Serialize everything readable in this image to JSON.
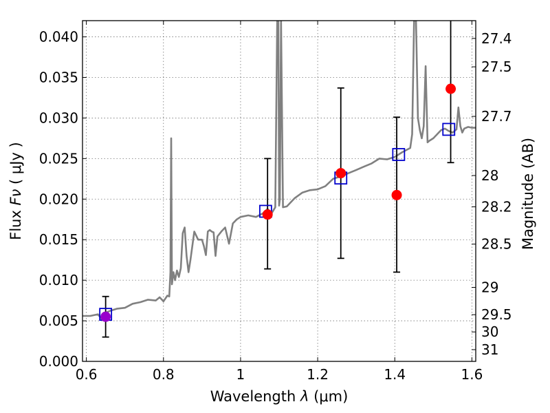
{
  "chart_data": {
    "type": "scatter",
    "title": "",
    "xlabel_prefix": "Wavelength ",
    "xlabel_symbol": "λ",
    "xlabel_unit": " (μm)",
    "ylabel_prefix": "Flux ",
    "ylabel_symbol": "Fν",
    "ylabel_unit": " ( μJy )",
    "y2label": "Magnitude (AB)",
    "xlim": [
      0.59,
      1.61
    ],
    "ylim": [
      0.0,
      0.042
    ],
    "grid": true,
    "x_ticks": [
      {
        "value": 0.6,
        "label": "0.6"
      },
      {
        "value": 0.8,
        "label": "0.8"
      },
      {
        "value": 1.0,
        "label": "1"
      },
      {
        "value": 1.2,
        "label": "1.2"
      },
      {
        "value": 1.4,
        "label": "1.4"
      },
      {
        "value": 1.6,
        "label": "1.6"
      }
    ],
    "y_ticks": [
      {
        "value": 0.0,
        "label": "0.000"
      },
      {
        "value": 0.005,
        "label": "0.005"
      },
      {
        "value": 0.01,
        "label": "0.010"
      },
      {
        "value": 0.015,
        "label": "0.015"
      },
      {
        "value": 0.02,
        "label": "0.020"
      },
      {
        "value": 0.025,
        "label": "0.025"
      },
      {
        "value": 0.03,
        "label": "0.030"
      },
      {
        "value": 0.035,
        "label": "0.035"
      },
      {
        "value": 0.04,
        "label": "0.040"
      }
    ],
    "y2_ticks": [
      {
        "mag": 27.4,
        "label": "27.4"
      },
      {
        "mag": 27.5,
        "label": "27.5"
      },
      {
        "mag": 27.7,
        "label": "27.7"
      },
      {
        "mag": 28.0,
        "label": "28"
      },
      {
        "mag": 28.2,
        "label": "28.2"
      },
      {
        "mag": 28.5,
        "label": "28.5"
      },
      {
        "mag": 29.0,
        "label": "29"
      },
      {
        "mag": 29.5,
        "label": "29.5"
      },
      {
        "mag": 30.0,
        "label": "30"
      },
      {
        "mag": 31.0,
        "label": "31"
      }
    ],
    "model_spectrum": {
      "color": "#808080",
      "x": [
        0.59,
        0.61,
        0.63,
        0.64,
        0.645,
        0.65,
        0.66,
        0.68,
        0.7,
        0.72,
        0.74,
        0.76,
        0.78,
        0.79,
        0.8,
        0.81,
        0.815,
        0.818,
        0.82,
        0.822,
        0.826,
        0.83,
        0.835,
        0.84,
        0.845,
        0.85,
        0.855,
        0.86,
        0.865,
        0.87,
        0.88,
        0.89,
        0.9,
        0.905,
        0.91,
        0.915,
        0.92,
        0.925,
        0.93,
        0.935,
        0.94,
        0.95,
        0.96,
        0.97,
        0.98,
        0.99,
        1.0,
        1.02,
        1.04,
        1.06,
        1.07,
        1.08,
        1.09,
        1.095,
        1.098,
        1.1,
        1.102,
        1.105,
        1.11,
        1.12,
        1.14,
        1.16,
        1.18,
        1.2,
        1.22,
        1.24,
        1.26,
        1.28,
        1.3,
        1.32,
        1.34,
        1.36,
        1.38,
        1.4,
        1.42,
        1.44,
        1.445,
        1.45,
        1.455,
        1.46,
        1.465,
        1.47,
        1.475,
        1.48,
        1.485,
        1.49,
        1.5,
        1.51,
        1.52,
        1.53,
        1.54,
        1.55,
        1.56,
        1.565,
        1.57,
        1.575,
        1.58,
        1.59,
        1.6,
        1.61
      ],
      "y": [
        0.0056,
        0.0056,
        0.0058,
        0.0052,
        0.0059,
        0.006,
        0.0062,
        0.0065,
        0.0066,
        0.0071,
        0.0073,
        0.0076,
        0.0075,
        0.0079,
        0.0074,
        0.0081,
        0.008,
        0.011,
        0.0275,
        0.0095,
        0.011,
        0.01,
        0.0112,
        0.0104,
        0.0115,
        0.0158,
        0.0165,
        0.013,
        0.011,
        0.0125,
        0.016,
        0.015,
        0.015,
        0.0142,
        0.0131,
        0.016,
        0.0162,
        0.016,
        0.0159,
        0.013,
        0.0154,
        0.016,
        0.0165,
        0.0145,
        0.017,
        0.0175,
        0.0178,
        0.018,
        0.0178,
        0.0183,
        0.0188,
        0.0182,
        0.019,
        0.042,
        0.042,
        0.0192,
        0.02,
        0.042,
        0.019,
        0.0191,
        0.0201,
        0.0208,
        0.0211,
        0.0212,
        0.0216,
        0.0225,
        0.0228,
        0.0232,
        0.0236,
        0.024,
        0.0244,
        0.025,
        0.0249,
        0.0252,
        0.0258,
        0.0263,
        0.028,
        0.042,
        0.042,
        0.03,
        0.0285,
        0.0275,
        0.029,
        0.0364,
        0.027,
        0.0272,
        0.0275,
        0.028,
        0.0285,
        0.0287,
        0.0284,
        0.0282,
        0.0286,
        0.0313,
        0.029,
        0.0282,
        0.0287,
        0.0289,
        0.0288,
        0.0288
      ]
    },
    "photometry": {
      "color": "#ff0000",
      "points": [
        {
          "x": 0.65,
          "y": 0.0055,
          "yerr_low": 0.003,
          "yerr_high": 0.008
        },
        {
          "x": 1.07,
          "y": 0.0181,
          "yerr_low": 0.0114,
          "yerr_high": 0.025
        },
        {
          "x": 1.26,
          "y": 0.0232,
          "yerr_low": 0.0127,
          "yerr_high": 0.0337
        },
        {
          "x": 1.405,
          "y": 0.0205,
          "yerr_low": 0.011,
          "yerr_high": 0.0301
        },
        {
          "x": 1.545,
          "y": 0.0336,
          "yerr_low": 0.0245,
          "yerr_high": 0.0425
        }
      ]
    },
    "model_photometry": {
      "color": "#0000cc",
      "points": [
        {
          "x": 0.65,
          "y": 0.0058
        },
        {
          "x": 1.065,
          "y": 0.0185
        },
        {
          "x": 1.26,
          "y": 0.0226
        },
        {
          "x": 1.41,
          "y": 0.0255
        },
        {
          "x": 1.54,
          "y": 0.0286
        }
      ]
    },
    "overlap_color": "#9900cc"
  }
}
